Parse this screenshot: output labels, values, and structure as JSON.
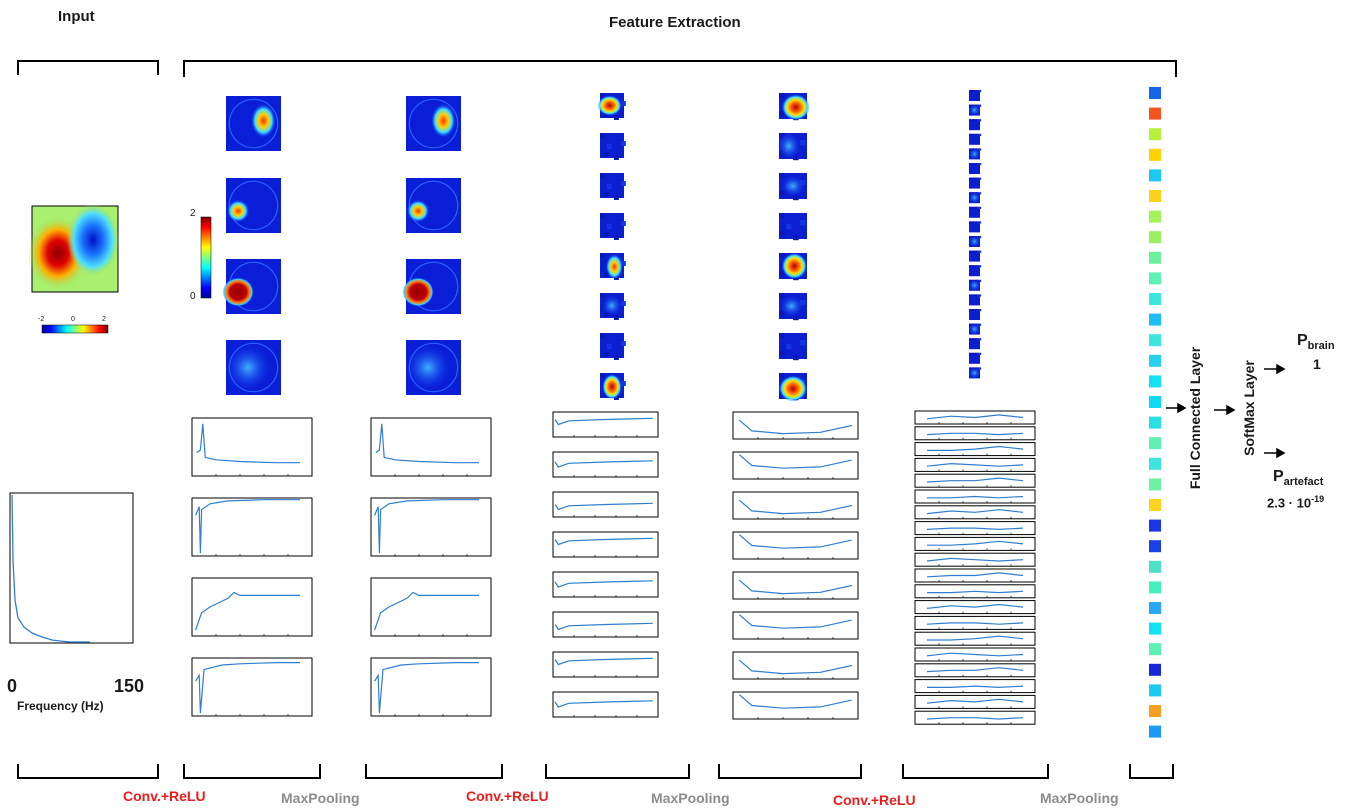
{
  "titles": {
    "input": "Input",
    "feature_extraction": "Feature Extraction"
  },
  "input": {
    "colorbar_ticks": [
      "-2",
      "0",
      "2"
    ],
    "spectrum_xmin": "0",
    "spectrum_xmax": "150",
    "spectrum_xlabel": "Frequency (Hz)"
  },
  "feature_colorbar": {
    "max": "2",
    "min": "0"
  },
  "layers": {
    "full_connected": "Full Connected Layer",
    "softmax": "SoftMax Layer"
  },
  "outputs": {
    "brain_label": "P",
    "brain_sub": "brain",
    "brain_value": "1",
    "artefact_label": "P",
    "artefact_sub": "artefact",
    "artefact_value_base": "2.3 · 10",
    "artefact_value_exp": "-19"
  },
  "operations": [
    {
      "label": "Conv.+ReLU",
      "color": "#ea1d1d"
    },
    {
      "label": "MaxPooling",
      "color": "#8c8c8c"
    },
    {
      "label": "Conv.+ReLU",
      "color": "#ea1d1d"
    },
    {
      "label": "MaxPooling",
      "color": "#8c8c8c"
    },
    {
      "label": "Conv.+ReLU",
      "color": "#ea1d1d"
    },
    {
      "label": "MaxPooling",
      "color": "#8c8c8c"
    }
  ],
  "colormap": "jet",
  "fc_vector_colors": [
    "#1565e8",
    "#f2561d",
    "#b4f03c",
    "#ffd200",
    "#1ec8f0",
    "#ffd21e",
    "#a6f25a",
    "#9bf062",
    "#6cf0a0",
    "#5ef0b4",
    "#3ce6dc",
    "#1ebef5",
    "#3ce6dc",
    "#28d2ee",
    "#14e2f0",
    "#10daf0",
    "#28e0e4",
    "#5ff0b4",
    "#3ce6dc",
    "#6ff0a2",
    "#ffd21e",
    "#1a37e6",
    "#1a41e6",
    "#4fe0c8",
    "#46f0be",
    "#28a8f5",
    "#14e2f0",
    "#5ef0b4",
    "#1628d8",
    "#1ec8f0",
    "#f5a01e",
    "#1e9af5"
  ]
}
